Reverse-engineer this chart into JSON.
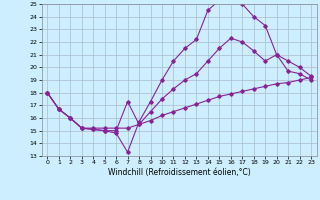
{
  "xlabel": "Windchill (Refroidissement éolien,°C)",
  "bg_color": "#cceeff",
  "grid_color": "#aabbcc",
  "line_color": "#882299",
  "xlim": [
    -0.5,
    23.5
  ],
  "ylim": [
    13,
    25
  ],
  "xticks": [
    0,
    1,
    2,
    3,
    4,
    5,
    6,
    7,
    8,
    9,
    10,
    11,
    12,
    13,
    14,
    15,
    16,
    17,
    18,
    19,
    20,
    21,
    22,
    23
  ],
  "yticks": [
    13,
    14,
    15,
    16,
    17,
    18,
    19,
    20,
    21,
    22,
    23,
    24,
    25
  ],
  "line1_x": [
    0,
    1,
    2,
    3,
    4,
    5,
    6,
    7,
    8,
    9,
    10,
    11,
    12,
    13,
    14,
    15,
    16,
    17,
    18,
    19,
    20,
    21,
    22,
    23
  ],
  "line1_y": [
    18,
    16.7,
    16,
    15.2,
    15.1,
    15.0,
    14.8,
    13.3,
    15.7,
    17.3,
    19.0,
    20.5,
    21.5,
    22.2,
    24.5,
    25.3,
    25.3,
    25.0,
    24.0,
    23.3,
    21.0,
    19.7,
    19.5,
    19.0
  ],
  "line2_x": [
    0,
    1,
    2,
    3,
    4,
    5,
    6,
    7,
    8,
    9,
    10,
    11,
    12,
    13,
    14,
    15,
    16,
    17,
    18,
    19,
    20,
    21,
    22,
    23
  ],
  "line2_y": [
    18,
    16.7,
    16,
    15.2,
    15.1,
    15.0,
    15.0,
    17.3,
    15.5,
    16.5,
    17.5,
    18.3,
    19.0,
    19.5,
    20.5,
    21.5,
    22.3,
    22.0,
    21.3,
    20.5,
    21.0,
    20.5,
    20.0,
    19.3
  ],
  "line3_x": [
    0,
    1,
    2,
    3,
    4,
    5,
    6,
    7,
    8,
    9,
    10,
    11,
    12,
    13,
    14,
    15,
    16,
    17,
    18,
    19,
    20,
    21,
    22,
    23
  ],
  "line3_y": [
    18,
    16.7,
    16,
    15.2,
    15.2,
    15.2,
    15.2,
    15.2,
    15.5,
    15.8,
    16.2,
    16.5,
    16.8,
    17.1,
    17.4,
    17.7,
    17.9,
    18.1,
    18.3,
    18.5,
    18.7,
    18.8,
    19.0,
    19.2
  ]
}
